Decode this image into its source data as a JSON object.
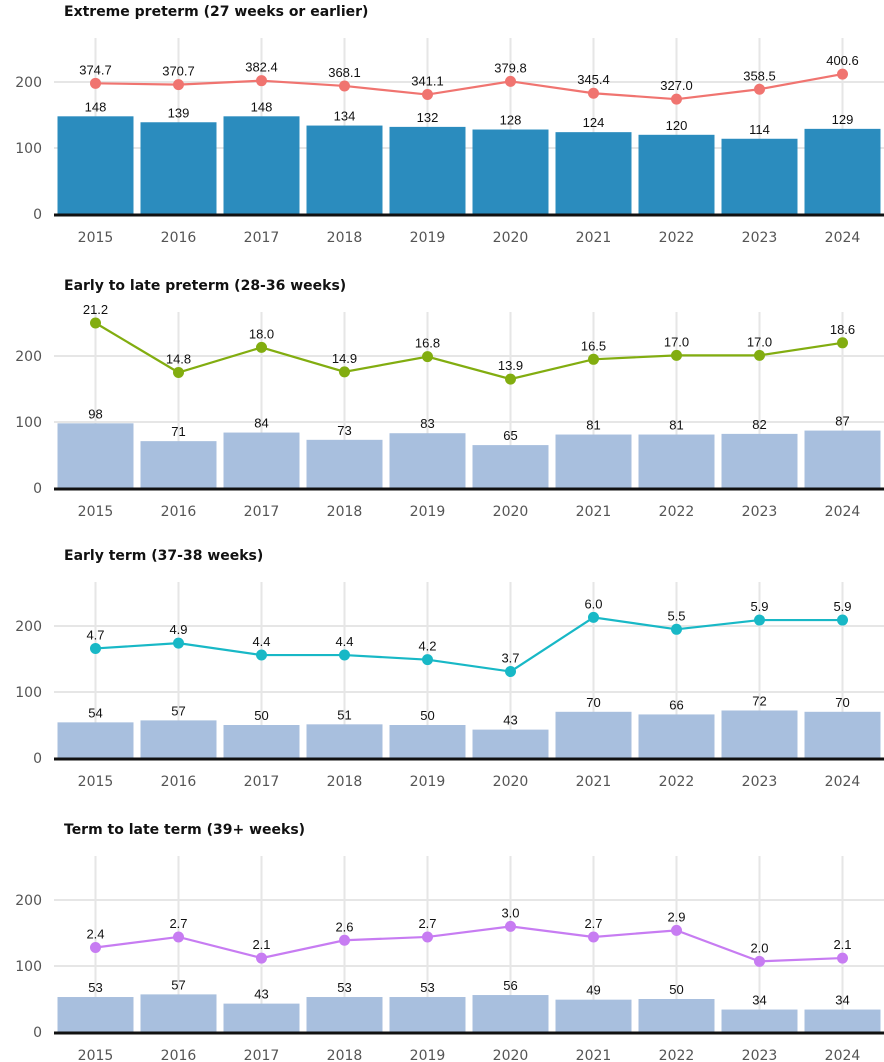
{
  "chart_data": [
    {
      "type": "bar",
      "title": "Extreme preterm (27 weeks or earlier)",
      "categories": [
        "2015",
        "2016",
        "2017",
        "2018",
        "2019",
        "2020",
        "2021",
        "2022",
        "2023",
        "2024"
      ],
      "ylim": [
        0,
        260
      ],
      "yticks": [
        "0",
        "100",
        "200"
      ],
      "bar_color": "#2b8cbe",
      "line_color": "#f07470",
      "grid": true,
      "series": [
        {
          "kind": "bar",
          "values": [
            148,
            139,
            148,
            134,
            132,
            128,
            124,
            120,
            114,
            129
          ],
          "labels": [
            "148",
            "139",
            "148",
            "134",
            "132",
            "128",
            "124",
            "120",
            "114",
            "129"
          ]
        },
        {
          "kind": "line",
          "values": [
            198,
            196,
            202,
            194,
            181,
            201,
            183,
            174,
            189,
            212
          ],
          "labels": [
            "374.7",
            "370.7",
            "382.4",
            "368.1",
            "341.1",
            "379.8",
            "345.4",
            "327.0",
            "358.5",
            "400.6"
          ]
        }
      ]
    },
    {
      "type": "bar",
      "title": "Early to late preterm (28-36 weeks)",
      "categories": [
        "2015",
        "2016",
        "2017",
        "2018",
        "2019",
        "2020",
        "2021",
        "2022",
        "2023",
        "2024"
      ],
      "ylim": [
        0,
        260
      ],
      "yticks": [
        "0",
        "100",
        "200"
      ],
      "bar_color": "#a8bfde",
      "line_color": "#82ad10",
      "grid": true,
      "series": [
        {
          "kind": "bar",
          "values": [
            98,
            71,
            84,
            73,
            83,
            65,
            81,
            81,
            82,
            87
          ],
          "labels": [
            "98",
            "71",
            "84",
            "73",
            "83",
            "65",
            "81",
            "81",
            "82",
            "87"
          ]
        },
        {
          "kind": "line",
          "values": [
            250,
            175,
            213,
            176,
            199,
            165,
            195,
            201,
            201,
            220
          ],
          "labels": [
            "21.2",
            "14.8",
            "18.0",
            "14.9",
            "16.8",
            "13.9",
            "16.5",
            "17.0",
            "17.0",
            "18.6"
          ]
        }
      ]
    },
    {
      "type": "bar",
      "title": "Early term (37-38 weeks)",
      "categories": [
        "2015",
        "2016",
        "2017",
        "2018",
        "2019",
        "2020",
        "2021",
        "2022",
        "2023",
        "2024"
      ],
      "ylim": [
        0,
        260
      ],
      "yticks": [
        "0",
        "100",
        "200"
      ],
      "bar_color": "#a8bfde",
      "line_color": "#18b8c6",
      "grid": true,
      "series": [
        {
          "kind": "bar",
          "values": [
            54,
            57,
            50,
            51,
            50,
            43,
            70,
            66,
            72,
            70
          ],
          "labels": [
            "54",
            "57",
            "50",
            "51",
            "50",
            "43",
            "70",
            "66",
            "72",
            "70"
          ]
        },
        {
          "kind": "line",
          "values": [
            166,
            174,
            156,
            156,
            149,
            131,
            213,
            195,
            209,
            209
          ],
          "labels": [
            "4.7",
            "4.9",
            "4.4",
            "4.4",
            "4.2",
            "3.7",
            "6.0",
            "5.5",
            "5.9",
            "5.9"
          ]
        }
      ]
    },
    {
      "type": "bar",
      "title": "Term to late term (39+ weeks)",
      "categories": [
        "2015",
        "2016",
        "2017",
        "2018",
        "2019",
        "2020",
        "2021",
        "2022",
        "2023",
        "2024"
      ],
      "ylim": [
        0,
        260
      ],
      "yticks": [
        "0",
        "100",
        "200"
      ],
      "bar_color": "#a8bfde",
      "line_color": "#c77cf2",
      "grid": true,
      "series": [
        {
          "kind": "bar",
          "values": [
            53,
            57,
            43,
            53,
            53,
            56,
            49,
            50,
            34,
            34
          ],
          "labels": [
            "53",
            "57",
            "43",
            "53",
            "53",
            "56",
            "49",
            "50",
            "34",
            "34"
          ]
        },
        {
          "kind": "line",
          "values": [
            128,
            144,
            112,
            139,
            144,
            160,
            144,
            154,
            107,
            112
          ],
          "labels": [
            "2.4",
            "2.7",
            "2.1",
            "2.6",
            "2.7",
            "3.0",
            "2.7",
            "2.9",
            "2.0",
            "2.1"
          ]
        }
      ]
    }
  ]
}
